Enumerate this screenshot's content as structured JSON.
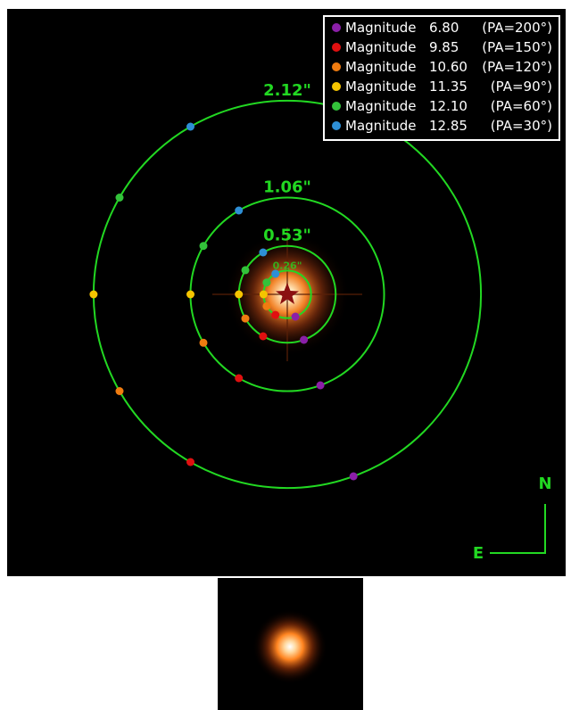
{
  "legend": [
    {
      "label": "Magnitude",
      "magnitude": "6.80",
      "pa": "(PA=200°)",
      "color": "#8b1fa8"
    },
    {
      "label": "Magnitude",
      "magnitude": "9.85",
      "pa": "(PA=150°)",
      "color": "#e01010"
    },
    {
      "label": "Magnitude",
      "magnitude": "10.60",
      "pa": "(PA=120°)",
      "color": "#f07c10"
    },
    {
      "label": "Magnitude",
      "magnitude": "11.35",
      "pa": "(PA=90°)",
      "color": "#f5c400"
    },
    {
      "label": "Magnitude",
      "magnitude": "12.10",
      "pa": "(PA=60°)",
      "color": "#33c23a"
    },
    {
      "label": "Magnitude",
      "magnitude": "12.85",
      "pa": "(PA=30°)",
      "color": "#2e8fd6"
    }
  ],
  "rings": [
    {
      "label": "2.12\"",
      "separation": 2.12
    },
    {
      "label": "1.06\"",
      "separation": 1.06
    },
    {
      "label": "0.53\"",
      "separation": 0.53
    },
    {
      "label": "0.26\"",
      "separation": 0.26
    }
  ],
  "compass": {
    "north": "N",
    "east": "E"
  },
  "colors": {
    "ring": "#22d822",
    "background": "#000000",
    "star": "#8b1010"
  }
}
